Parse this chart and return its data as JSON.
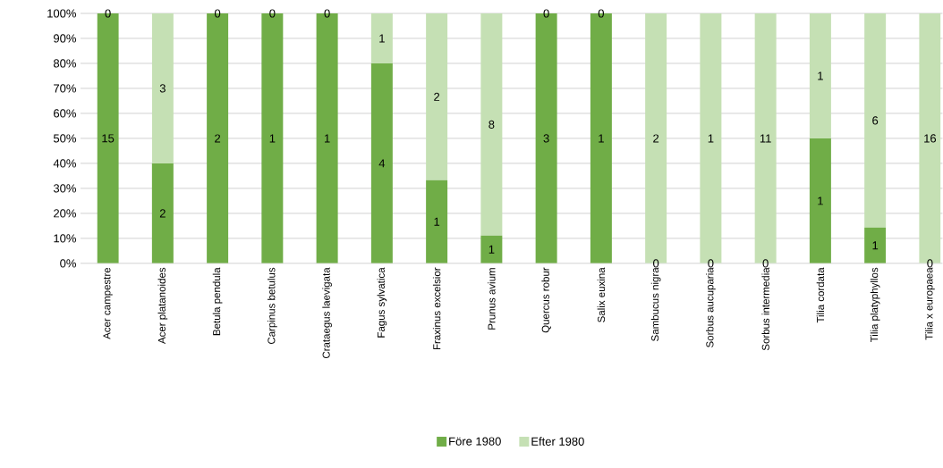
{
  "chart_data": {
    "type": "bar",
    "stacked": true,
    "categories": [
      "Acer campestre",
      "Acer platanoides",
      "Betula pendula",
      "Carpinus betulus",
      "Crataegus laevigata",
      "Fagus sylvatica",
      "Fraxinus excelsior",
      "Prunus avium",
      "Quercus robur",
      "Salix euxina",
      "Sambucus nigra",
      "Sorbus aucuparia",
      "Sorbus intermedia",
      "Tilia cordata",
      "Tilia platyphyllos",
      "Tilia x europaea"
    ],
    "series": [
      {
        "name": "Före 1980",
        "color": "#70ad47",
        "values": [
          100,
          40,
          100,
          100,
          100,
          80,
          33.3,
          11.1,
          100,
          100,
          0,
          0,
          0,
          50,
          14.3,
          0
        ]
      },
      {
        "name": "Efter 1980",
        "color": "#c5e0b4",
        "values": [
          0,
          60,
          0,
          0,
          0,
          20,
          66.7,
          88.9,
          0,
          0,
          100,
          100,
          100,
          50,
          85.7,
          100
        ]
      }
    ],
    "annotations": [
      "15",
      "0",
      "2",
      "3",
      "2",
      "0",
      "1",
      "0",
      "1",
      "0",
      "4",
      "1",
      "1",
      "2",
      "1",
      "8",
      "3",
      "0",
      "1",
      "0",
      "0",
      "2",
      "0",
      "1",
      "0",
      "11",
      "1",
      "1",
      "1",
      "6",
      "0",
      "16"
    ],
    "ylim": [
      0,
      100
    ],
    "yticks": [
      {
        "value": 0,
        "label": "0%"
      },
      {
        "value": 10,
        "label": "10%"
      },
      {
        "value": 20,
        "label": "20%"
      },
      {
        "value": 30,
        "label": "30%"
      },
      {
        "value": 40,
        "label": "40%"
      },
      {
        "value": 50,
        "label": "50%"
      },
      {
        "value": 60,
        "label": "60%"
      },
      {
        "value": 70,
        "label": "70%"
      },
      {
        "value": 80,
        "label": "80%"
      },
      {
        "value": 90,
        "label": "90%"
      },
      {
        "value": 100,
        "label": "100%"
      }
    ],
    "grid": "y",
    "legend": "bottom"
  }
}
